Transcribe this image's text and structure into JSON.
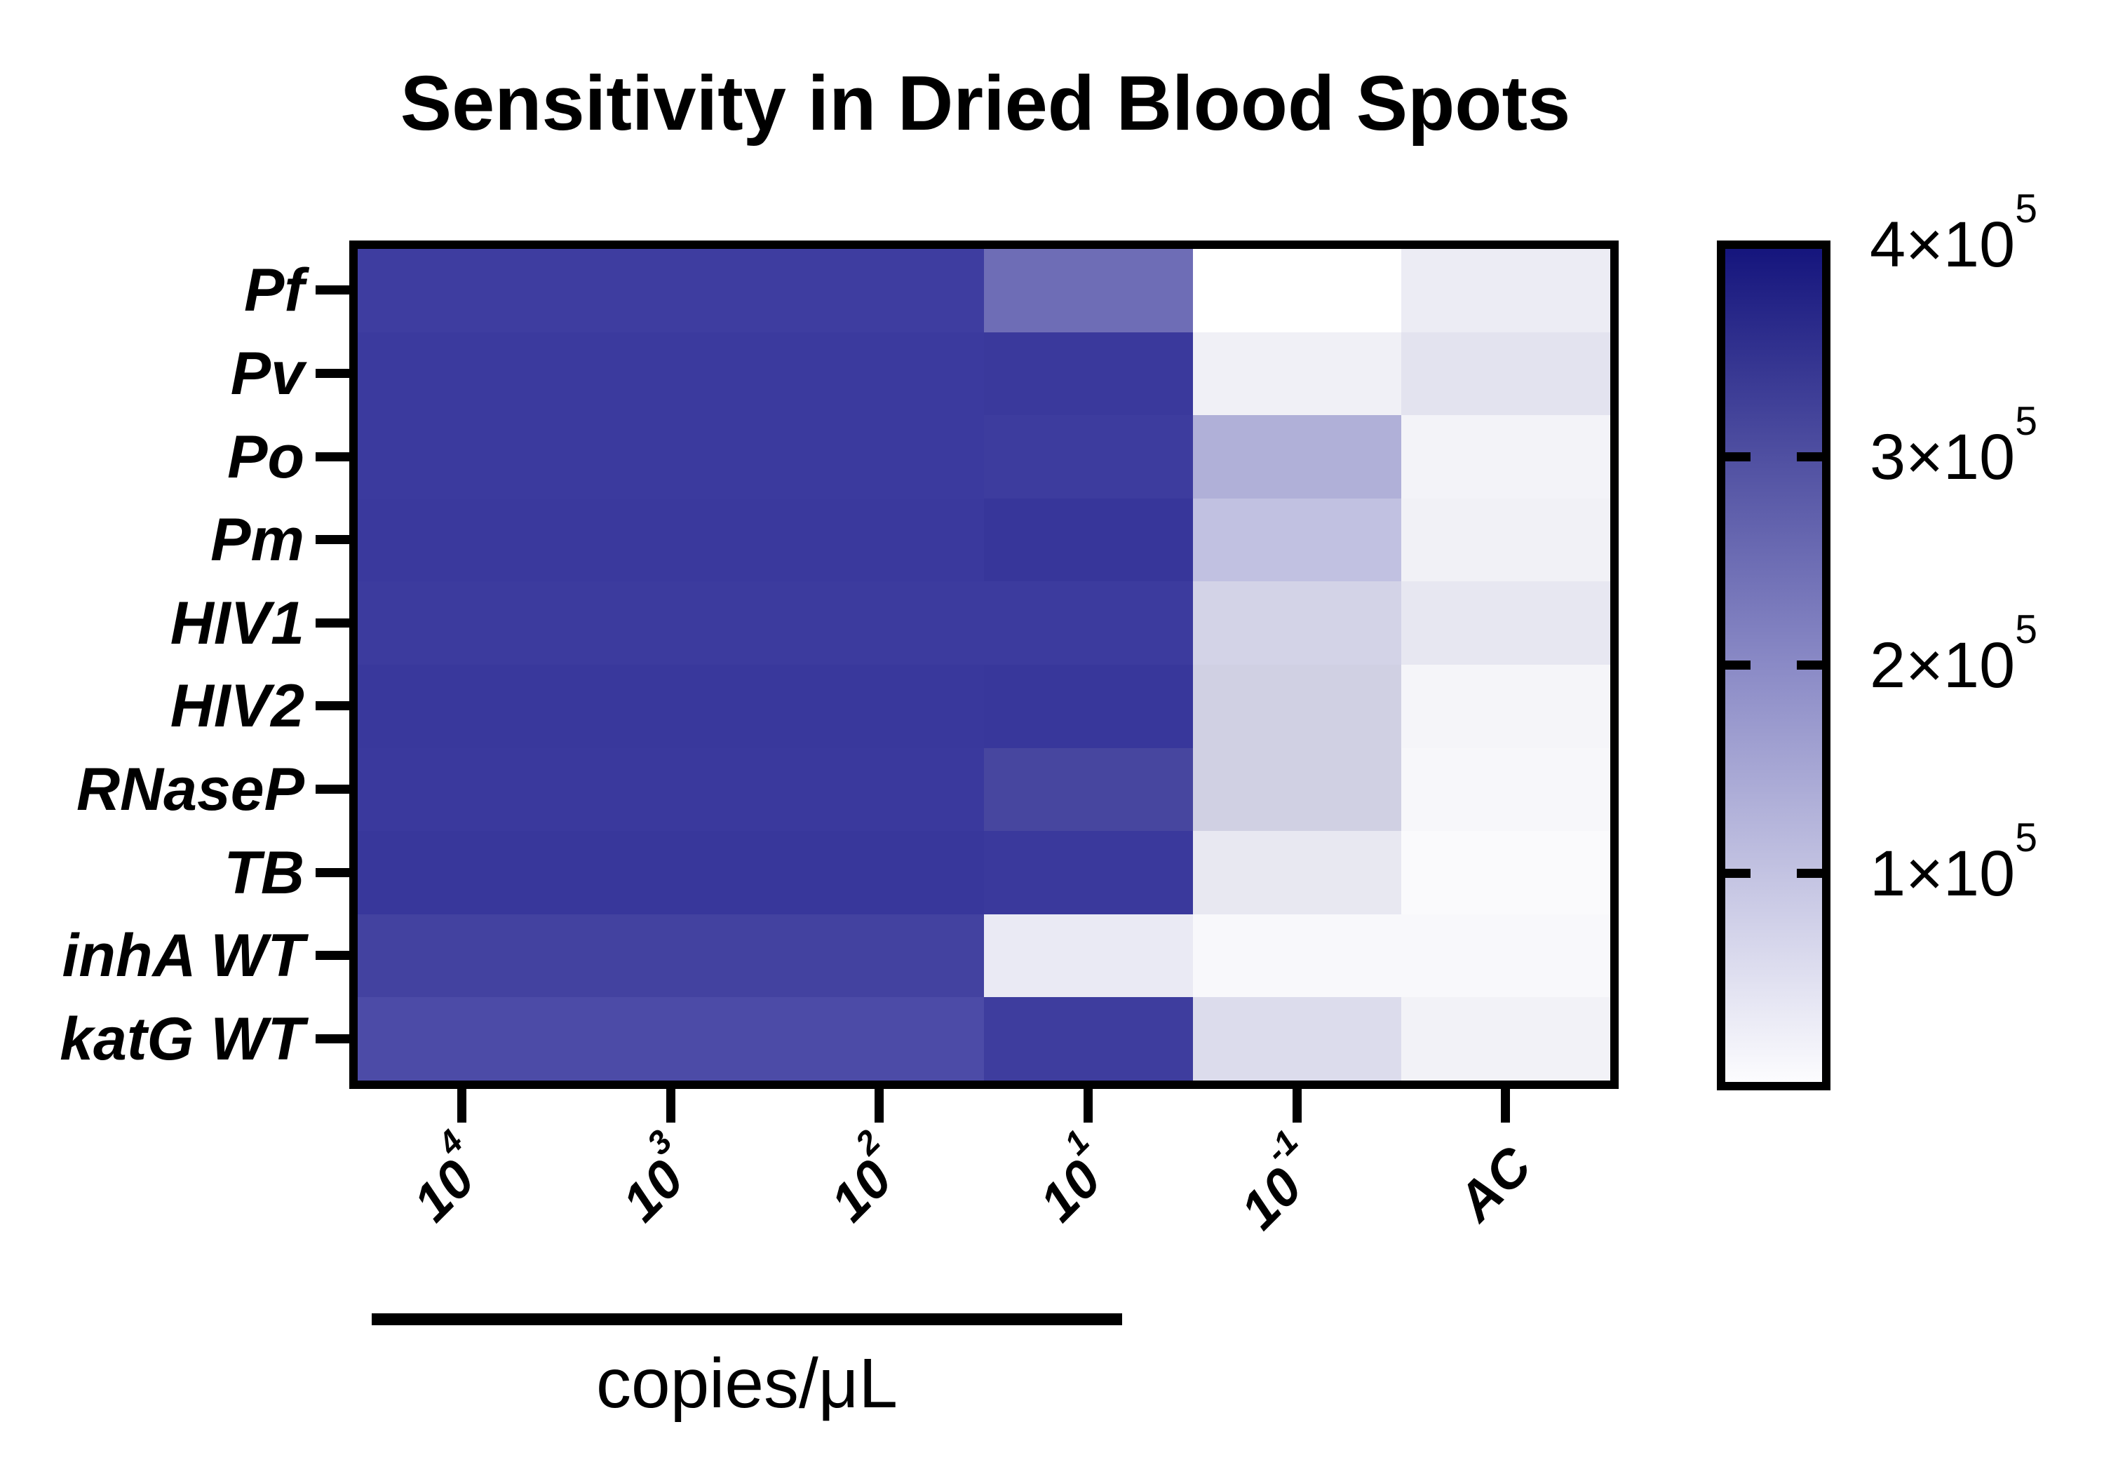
{
  "title": "Sensitivity in Dried Blood Spots",
  "y_axis": {
    "labels": [
      "Pf",
      "Pv",
      "Po",
      "Pm",
      "HIV1",
      "HIV2",
      "RNaseP",
      "TB",
      "inhA WT",
      "katG WT"
    ]
  },
  "x_axis": {
    "ticks": [
      {
        "base": "10",
        "exp": "4"
      },
      {
        "base": "10",
        "exp": "3"
      },
      {
        "base": "10",
        "exp": "2"
      },
      {
        "base": "10",
        "exp": "1"
      },
      {
        "base": "10",
        "exp": "-1"
      },
      {
        "base": "AC",
        "exp": ""
      }
    ],
    "group_label": "copies/μL",
    "group_span_columns": [
      "10^4",
      "10^3",
      "10^2",
      "10^1"
    ]
  },
  "colorbar": {
    "labels": [
      {
        "coef": "4×10",
        "exp": "5"
      },
      {
        "coef": "3×10",
        "exp": "5"
      },
      {
        "coef": "2×10",
        "exp": "5"
      },
      {
        "coef": "1×10",
        "exp": "5"
      }
    ],
    "tick_values": [
      400000,
      300000,
      200000,
      100000
    ],
    "min": 0,
    "max": 400000,
    "top_color": "#15157d",
    "mid_color": "#8a8ac6",
    "bottom_color": "#fcfcfe"
  },
  "chart_data": {
    "type": "heatmap",
    "title": "Sensitivity in Dried Blood Spots",
    "rows": [
      "Pf",
      "Pv",
      "Po",
      "Pm",
      "HIV1",
      "HIV2",
      "RNaseP",
      "TB",
      "inhA WT",
      "katG WT"
    ],
    "columns": [
      "10^4",
      "10^3",
      "10^2",
      "10^1",
      "10^-1",
      "AC"
    ],
    "x_group_label": "copies/μL",
    "colorbar_range": [
      0,
      400000
    ],
    "colorbar_tick_values": [
      100000,
      200000,
      300000,
      400000
    ],
    "legend_position": "right",
    "values": [
      [
        337000,
        337000,
        337000,
        253000,
        0,
        33000
      ],
      [
        342000,
        342000,
        342000,
        344000,
        26000,
        49000
      ],
      [
        342000,
        342000,
        342000,
        339000,
        138000,
        21000
      ],
      [
        344000,
        344000,
        344000,
        349000,
        108000,
        24000
      ],
      [
        341000,
        341000,
        341000,
        341000,
        77000,
        42000
      ],
      [
        346000,
        346000,
        346000,
        348000,
        82000,
        17000
      ],
      [
        344000,
        344000,
        344000,
        321000,
        82000,
        14000
      ],
      [
        348000,
        348000,
        348000,
        346000,
        40000,
        9000
      ],
      [
        328000,
        328000,
        328000,
        37000,
        12000,
        12000
      ],
      [
        313000,
        313000,
        313000,
        339000,
        61000,
        23000
      ]
    ],
    "cell_colors": [
      [
        "#3e3da0",
        "#3e3da0",
        "#3e3da0",
        "#6e6db6",
        "#ffffff",
        "#ececf4"
      ],
      [
        "#3b3a9e",
        "#3b3a9e",
        "#3b3a9e",
        "#3a399c",
        "#f0f0f6",
        "#e3e3ef"
      ],
      [
        "#3b3a9e",
        "#3b3a9e",
        "#3b3a9e",
        "#3d3c9e",
        "#b0b0d8",
        "#f3f3f8"
      ],
      [
        "#3a399d",
        "#3a399d",
        "#3a399d",
        "#37369a",
        "#c1c1e1",
        "#f1f1f6"
      ],
      [
        "#3c3b9e",
        "#3c3b9e",
        "#3c3b9e",
        "#3c3b9e",
        "#d3d3e7",
        "#e7e7f1"
      ],
      [
        "#39389c",
        "#39389c",
        "#39389c",
        "#38379b",
        "#d0d0e3",
        "#f5f5f9"
      ],
      [
        "#3a399d",
        "#3a399d",
        "#3a399d",
        "#47469f",
        "#d0d0e3",
        "#f7f7fa"
      ],
      [
        "#38379b",
        "#38379b",
        "#38379b",
        "#3a399c",
        "#e8e8f1",
        "#fafafc"
      ],
      [
        "#4342a0",
        "#4342a0",
        "#4342a0",
        "#eaeaf4",
        "#f8f8fb",
        "#f8f8fb"
      ],
      [
        "#4c4ba7",
        "#4c4ba7",
        "#4c4ba7",
        "#3e3d9e",
        "#dcdcec",
        "#f2f2f7"
      ]
    ]
  }
}
